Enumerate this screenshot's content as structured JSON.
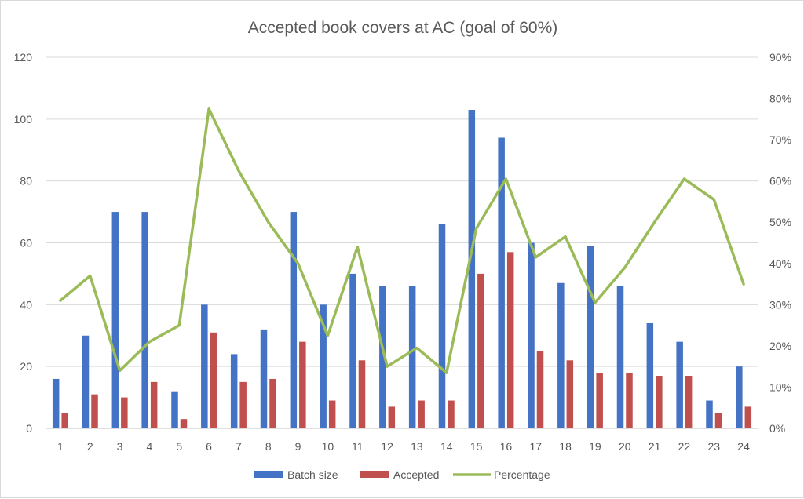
{
  "chart_data": {
    "type": "bar",
    "title": "Accepted book covers at AC (goal of 60%)",
    "categories": [
      "1",
      "2",
      "3",
      "4",
      "5",
      "6",
      "7",
      "8",
      "9",
      "10",
      "11",
      "12",
      "13",
      "14",
      "15",
      "16",
      "17",
      "18",
      "19",
      "20",
      "21",
      "22",
      "23",
      "24"
    ],
    "series": [
      {
        "name": "Batch size",
        "type": "bar",
        "axis": "left",
        "color": "#4472C4",
        "values": [
          16,
          30,
          70,
          70,
          12,
          40,
          24,
          32,
          70,
          40,
          50,
          46,
          46,
          66,
          103,
          94,
          60,
          47,
          59,
          46,
          34,
          28,
          9,
          20
        ]
      },
      {
        "name": "Accepted",
        "type": "bar",
        "axis": "left",
        "color": "#C0504D",
        "values": [
          5,
          11,
          10,
          15,
          3,
          31,
          15,
          16,
          28,
          9,
          22,
          7,
          9,
          9,
          50,
          57,
          25,
          22,
          18,
          18,
          17,
          17,
          5,
          7
        ]
      },
      {
        "name": "Percentage",
        "type": "line",
        "axis": "right",
        "color": "#9BBB59",
        "values": [
          0.31,
          0.37,
          0.14,
          0.21,
          0.25,
          0.775,
          0.625,
          0.5,
          0.4,
          0.225,
          0.44,
          0.15,
          0.195,
          0.135,
          0.485,
          0.605,
          0.415,
          0.465,
          0.305,
          0.39,
          0.5,
          0.605,
          0.555,
          0.35
        ]
      }
    ],
    "y_left": {
      "min": 0,
      "max": 120,
      "ticks": [
        "0",
        "20",
        "40",
        "60",
        "80",
        "100",
        "120"
      ]
    },
    "y_right": {
      "min": 0,
      "max": 0.9,
      "ticks": [
        "0%",
        "10%",
        "20%",
        "30%",
        "40%",
        "50%",
        "60%",
        "70%",
        "80%",
        "90%"
      ]
    },
    "grid": true,
    "legend_position": "bottom"
  }
}
